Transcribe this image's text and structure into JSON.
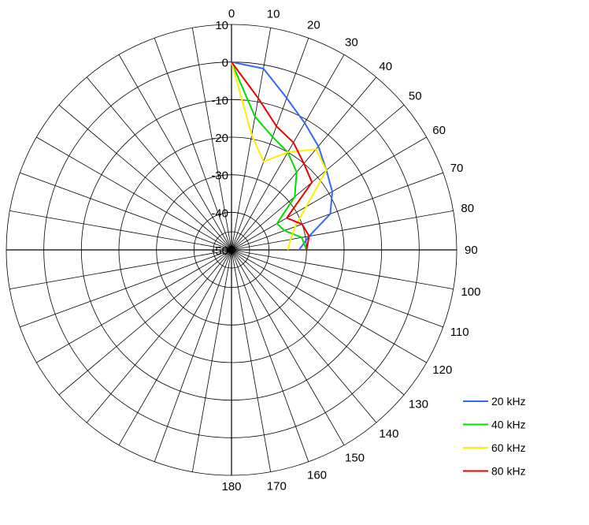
{
  "chart_data": {
    "type": "polar-line",
    "title": "",
    "angular_axis": {
      "ticks": [
        0,
        10,
        20,
        30,
        40,
        50,
        60,
        70,
        80,
        90,
        100,
        110,
        120,
        130,
        140,
        150,
        160,
        170,
        180
      ],
      "spoke_step_deg": 10,
      "zero_direction": "top",
      "direction": "clockwise"
    },
    "radial_axis": {
      "ticks": [
        10,
        0,
        -10,
        -20,
        -30,
        -40,
        -50
      ],
      "range": [
        -50,
        10
      ],
      "tick_labels_shown": [
        "10",
        "0",
        "-10",
        "-20",
        "-30",
        "-40",
        "-50"
      ]
    },
    "grid": true,
    "legend": {
      "position": "bottom-right"
    },
    "series": [
      {
        "name": "20 kHz",
        "color": "#3366ff",
        "angles": [
          0,
          10,
          20,
          30,
          40,
          50,
          60,
          70,
          80,
          90
        ],
        "values": [
          0,
          -1,
          -7,
          -11,
          -14,
          -17,
          -19,
          -22,
          -29,
          -32
        ]
      },
      {
        "name": "40 kHz",
        "color": "#00dd00",
        "angles": [
          0,
          10,
          20,
          30,
          40,
          50,
          60,
          70,
          80,
          90
        ],
        "values": [
          0,
          -14,
          -18,
          -20,
          -23,
          -28,
          -36,
          -35,
          -31,
          -30
        ]
      },
      {
        "name": "60 kHz",
        "color": "#ffee00",
        "angles": [
          0,
          10,
          20,
          30,
          40,
          50,
          60,
          70,
          80,
          90
        ],
        "values": [
          0,
          -19,
          -25,
          -20,
          -15,
          -17,
          -27,
          -32,
          -34,
          -35
        ]
      },
      {
        "name": "80 kHz",
        "color": "#ee0000",
        "angles": [
          0,
          10,
          20,
          30,
          40,
          50,
          60,
          70,
          80,
          90
        ],
        "values": [
          0,
          -9,
          -15,
          -17,
          -20,
          -22,
          -33,
          -30,
          -29,
          -30
        ]
      }
    ]
  }
}
